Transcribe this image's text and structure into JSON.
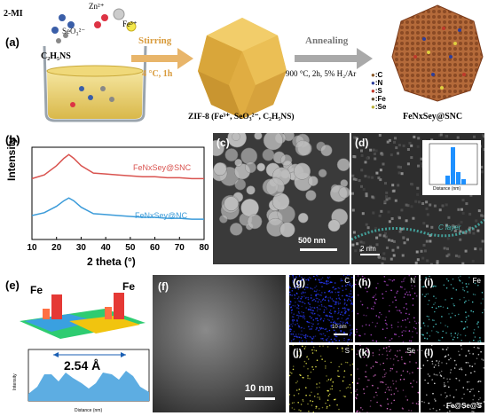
{
  "panel_a": {
    "label": "(a)",
    "reagent_2mi": "2-MI",
    "reagent_zn": "Zn²⁺",
    "reagent_fe": "Fe³⁺",
    "reagent_seo3": "SeO₃²⁻",
    "reagent_c2h5ns": "C₂H₅NS",
    "step1_label": "Stirring",
    "step1_cond": "4 °C, 1h",
    "zif_label": "ZIF-8 (Fe³⁺, SeO₃²⁻, C₂H₅NS)",
    "step2_label": "Annealing",
    "step2_cond": "900 °C, 2h, 5% H₂/Ar",
    "product_label": "FeNxSey@SNC",
    "legend": [
      {
        "text": ":C",
        "color": "#8a5a2b"
      },
      {
        "text": ":N",
        "color": "#2d3e9a"
      },
      {
        "text": ":S",
        "color": "#c0392b"
      },
      {
        "text": ":Fe",
        "color": "#5c4a2e"
      },
      {
        "text": ":Se",
        "color": "#b9b13a"
      }
    ]
  },
  "panel_b": {
    "label": "(b)",
    "chart_data": {
      "type": "line",
      "xlabel": "2 theta (°)",
      "ylabel": "Intensity",
      "xlim": [
        10,
        80
      ],
      "xticks": [
        "10",
        "20",
        "30",
        "40",
        "50",
        "60",
        "70",
        "80"
      ],
      "series": [
        {
          "name": "FeNxSey@SNC",
          "color": "#d9534f",
          "x": [
            10,
            15,
            20,
            23,
            25,
            27,
            30,
            35,
            40,
            45,
            50,
            55,
            60,
            65,
            70,
            75,
            80
          ],
          "y": [
            0.66,
            0.7,
            0.8,
            0.88,
            0.92,
            0.88,
            0.8,
            0.72,
            0.71,
            0.7,
            0.69,
            0.68,
            0.68,
            0.67,
            0.67,
            0.66,
            0.66
          ]
        },
        {
          "name": "FeNxSey@NC",
          "color": "#3b9bd9",
          "x": [
            10,
            15,
            20,
            23,
            25,
            27,
            30,
            35,
            40,
            45,
            50,
            55,
            60,
            65,
            70,
            75,
            80
          ],
          "y": [
            0.26,
            0.29,
            0.36,
            0.42,
            0.45,
            0.42,
            0.35,
            0.28,
            0.27,
            0.26,
            0.25,
            0.24,
            0.24,
            0.23,
            0.23,
            0.22,
            0.22
          ]
        }
      ]
    },
    "series_labels": [
      "FeNxSey@SNC",
      "FeNxSey@NC"
    ]
  },
  "panel_c": {
    "label": "(c)",
    "scalebar": "500 nm"
  },
  "panel_d": {
    "label": "(d)",
    "scalebar": "2 nm",
    "annotation": "C layer",
    "inset_axis": "Distance (nm)"
  },
  "panel_e": {
    "label": "(e)",
    "fe_left": "Fe",
    "fe_right": "Fe",
    "distance": "2.54 Å",
    "ylabel": "Intensity",
    "xlabel": "Distance (nm)"
  },
  "panel_f": {
    "label": "(f)",
    "scalebar": "10 nm"
  },
  "maps": [
    {
      "label": "(g)",
      "element": "C",
      "color": "#2a3cff",
      "scalebar": "10 nm"
    },
    {
      "label": "(h)",
      "element": "N",
      "color": "#c050e0",
      "scalebar": ""
    },
    {
      "label": "(i)",
      "element": "Fe",
      "color": "#4fd0d0",
      "scalebar": ""
    },
    {
      "label": "(j)",
      "element": "S",
      "color": "#f0f050",
      "scalebar": ""
    },
    {
      "label": "(k)",
      "element": "Se",
      "color": "#e070d0",
      "scalebar": ""
    },
    {
      "label": "(l)",
      "element": "Fe@Se@S",
      "color": "#f0f0f0",
      "scalebar": ""
    }
  ]
}
